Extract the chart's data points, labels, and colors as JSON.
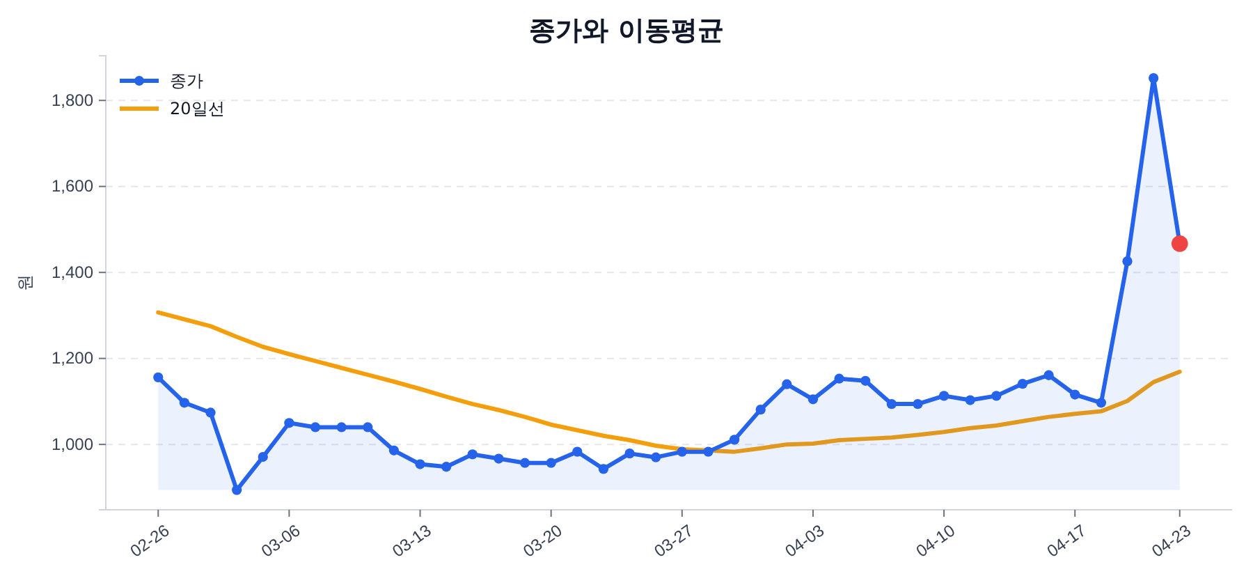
{
  "chart_data": {
    "type": "line",
    "title": "종가와 이동평균",
    "ylabel": "원",
    "categories": [
      "02-26",
      null,
      null,
      null,
      null,
      "03-06",
      null,
      null,
      null,
      null,
      "03-13",
      null,
      null,
      null,
      null,
      "03-20",
      null,
      null,
      null,
      null,
      "03-27",
      null,
      null,
      null,
      null,
      "04-03",
      null,
      null,
      null,
      null,
      "04-10",
      null,
      null,
      null,
      null,
      "04-17",
      null,
      null,
      null,
      "04-23"
    ],
    "series": [
      {
        "name": "종가",
        "type": "area",
        "color": "#2563eb",
        "marker": "circle",
        "values": [
          1156,
          1097,
          1074,
          894,
          971,
          1050,
          1040,
          1040,
          1040,
          986,
          954,
          948,
          977,
          967,
          957,
          957,
          983,
          943,
          979,
          970,
          983,
          983,
          1011,
          1081,
          1140,
          1105,
          1153,
          1148,
          1094,
          1094,
          1113,
          1103,
          1113,
          1141,
          1161,
          1116,
          1097,
          1426,
          1852,
          1467
        ]
      },
      {
        "name": "20일선",
        "color": "#f59e0b",
        "marker": "none",
        "values": [
          1307,
          1291,
          1275,
          1250,
          1227,
          1210,
          1194,
          1178,
          1162,
          1146,
          1129,
          1111,
          1094,
          1080,
          1064,
          1046,
          1033,
          1020,
          1010,
          997,
          989,
          986,
          983,
          991,
          1000,
          1002,
          1010,
          1013,
          1016,
          1022,
          1029,
          1038,
          1044,
          1054,
          1064,
          1071,
          1077,
          1101,
          1145,
          1169
        ]
      },
      {
        "type": "scatter",
        "color": "#ef4444",
        "marker": "circle",
        "values": [
          null,
          null,
          null,
          null,
          null,
          null,
          null,
          null,
          null,
          null,
          null,
          null,
          null,
          null,
          null,
          null,
          null,
          null,
          null,
          null,
          null,
          null,
          null,
          null,
          null,
          null,
          null,
          null,
          null,
          null,
          null,
          null,
          null,
          null,
          null,
          null,
          null,
          null,
          null,
          1467
        ]
      }
    ],
    "ylim": [
      848,
      1904
    ],
    "yticks": [
      {
        "value": 1000,
        "label": "1,000"
      },
      {
        "value": 1200,
        "label": "1,200"
      },
      {
        "value": 1400,
        "label": "1,400"
      },
      {
        "value": 1600,
        "label": "1,600"
      },
      {
        "value": 1800,
        "label": "1,800"
      }
    ],
    "grid": "y",
    "legend": "top left",
    "line_style": "solid"
  }
}
